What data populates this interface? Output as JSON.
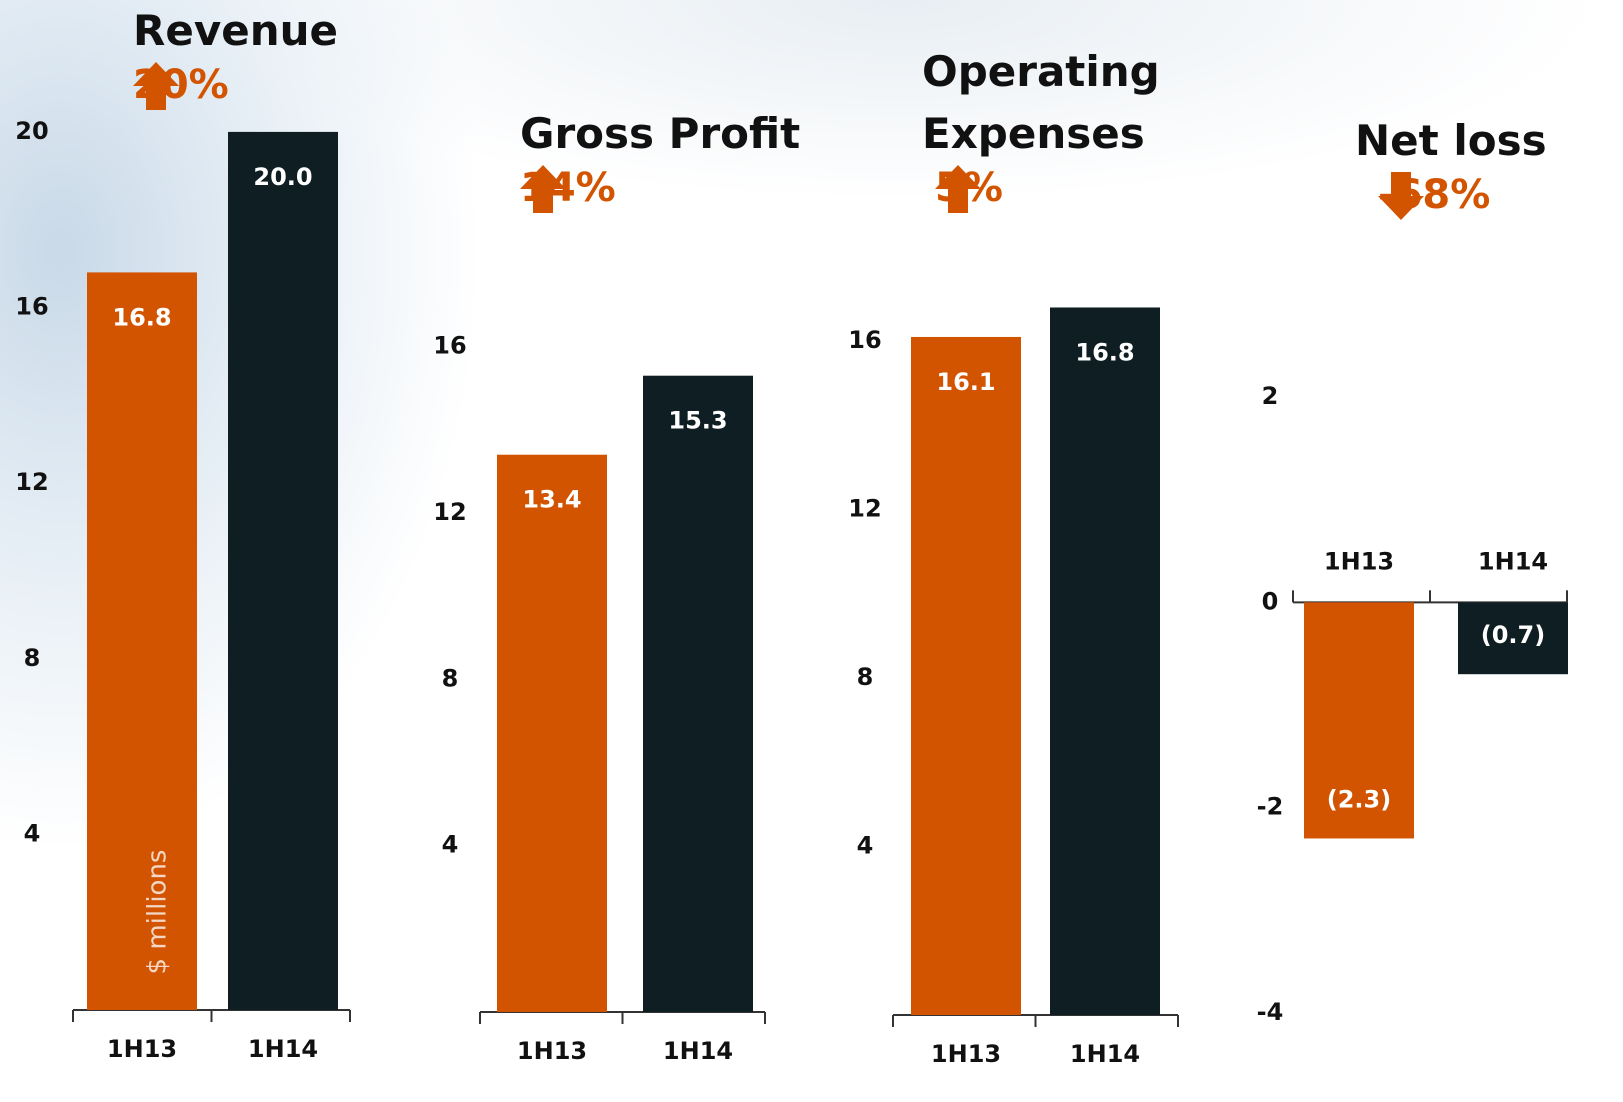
{
  "chart_data": [
    {
      "type": "bar",
      "title": "Revenue",
      "change": "20%",
      "direction": "up",
      "ylabel": "$ millions",
      "categories": [
        "1H13",
        "1H14"
      ],
      "values": [
        16.8,
        20.0
      ],
      "value_labels": [
        "16.8",
        "20.0"
      ],
      "colors": [
        "#d35400",
        "#0f1e22"
      ],
      "ylim": [
        0,
        21
      ],
      "yticks": [
        4,
        8,
        12,
        16,
        20
      ]
    },
    {
      "type": "bar",
      "title": "Gross Profit",
      "change": "14%",
      "direction": "up",
      "categories": [
        "1H13",
        "1H14"
      ],
      "values": [
        13.4,
        15.3
      ],
      "value_labels": [
        "13.4",
        "15.3"
      ],
      "colors": [
        "#d35400",
        "#0f1e22"
      ],
      "ylim": [
        0,
        17
      ],
      "yticks": [
        4,
        8,
        12,
        16
      ]
    },
    {
      "type": "bar",
      "title": "Operating Expenses",
      "change": "5%",
      "direction": "up",
      "categories": [
        "1H13",
        "1H14"
      ],
      "values": [
        16.1,
        16.8
      ],
      "value_labels": [
        "16.1",
        "16.8"
      ],
      "colors": [
        "#d35400",
        "#0f1e22"
      ],
      "ylim": [
        0,
        17.5
      ],
      "yticks": [
        4,
        8,
        12,
        16
      ]
    },
    {
      "type": "bar",
      "title": "Net loss",
      "change": "-68%",
      "direction": "down",
      "categories": [
        "1H13",
        "1H14"
      ],
      "values": [
        -2.3,
        -0.7
      ],
      "value_labels": [
        "(2.3)",
        "(0.7)"
      ],
      "colors": [
        "#d35400",
        "#0f1e22"
      ],
      "ylim": [
        -4,
        2
      ],
      "yticks": [
        2,
        0,
        -2,
        -4
      ]
    }
  ]
}
